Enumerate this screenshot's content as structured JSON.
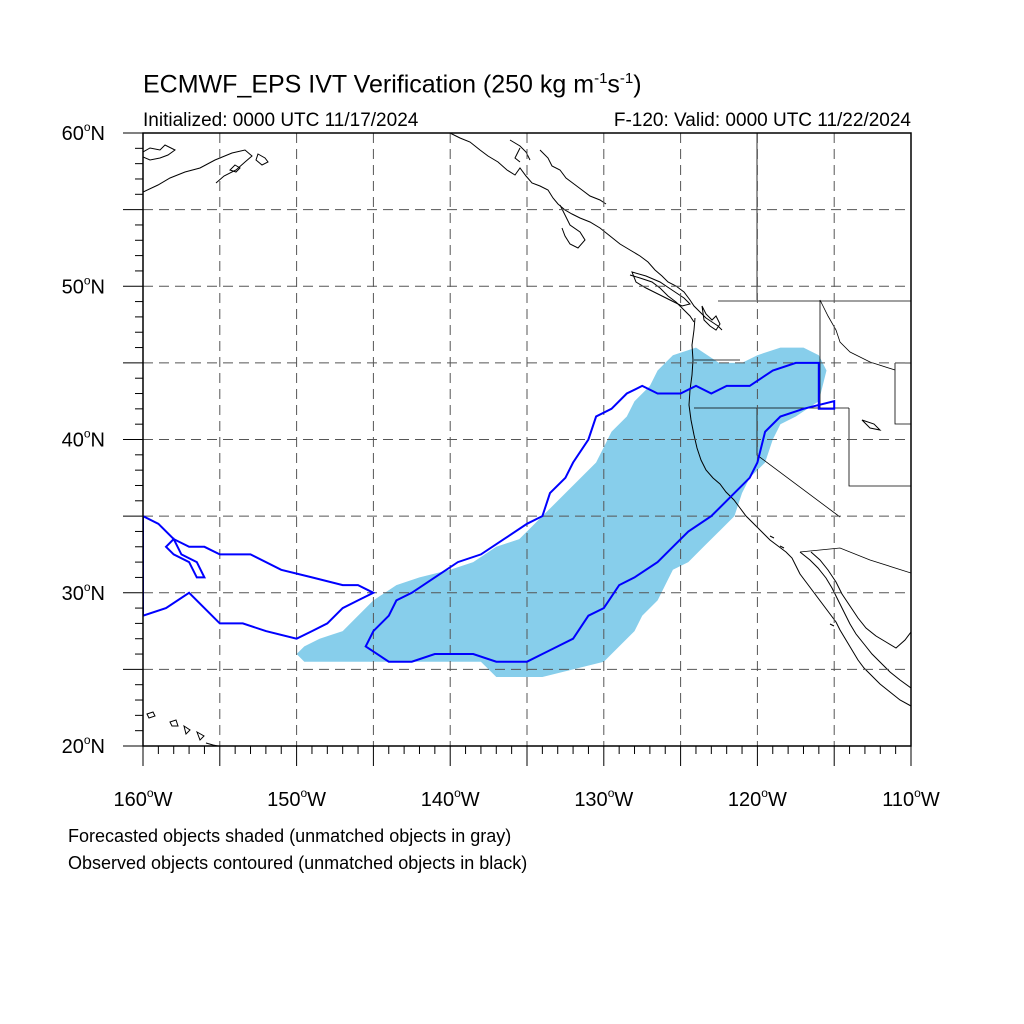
{
  "title": {
    "main": "ECMWF_EPS IVT Verification (250 kg m",
    "exp1": "-1",
    "mid": "s",
    "exp2": "-1",
    "end": ")"
  },
  "subtitle": {
    "left": "Initialized: 0000 UTC 11/17/2024",
    "right": "F-120: Valid: 0000 UTC 11/22/2024"
  },
  "map": {
    "lon_range": [
      -160,
      -110
    ],
    "lat_range": [
      20,
      60
    ],
    "lat_labels": [
      {
        "value": 60,
        "text": "60",
        "hemi": "N"
      },
      {
        "value": 50,
        "text": "50",
        "hemi": "N"
      },
      {
        "value": 40,
        "text": "40",
        "hemi": "N"
      },
      {
        "value": 30,
        "text": "30",
        "hemi": "N"
      },
      {
        "value": 20,
        "text": "20",
        "hemi": "N"
      }
    ],
    "lon_labels": [
      {
        "value": -160,
        "text": "160",
        "hemi": "W"
      },
      {
        "value": -150,
        "text": "150",
        "hemi": "W"
      },
      {
        "value": -140,
        "text": "140",
        "hemi": "W"
      },
      {
        "value": -130,
        "text": "130",
        "hemi": "W"
      },
      {
        "value": -120,
        "text": "120",
        "hemi": "W"
      },
      {
        "value": -110,
        "text": "110",
        "hemi": "W"
      }
    ],
    "gridlines_lon": [
      -155,
      -150,
      -145,
      -140,
      -135,
      -130,
      -125,
      -120,
      -115
    ],
    "gridlines_lat": [
      25,
      30,
      35,
      40,
      45,
      50,
      55
    ],
    "grid_style": "dashed",
    "colors": {
      "forecast_fill": "#87ceeb",
      "observed_contour": "#0000ff",
      "coastline": "#000000",
      "grid": "#555555"
    },
    "forecast_object": [
      [
        -149.5,
        25.5
      ],
      [
        -147.5,
        25.5
      ],
      [
        -146.5,
        25.5
      ],
      [
        -141.5,
        25.5
      ],
      [
        -138,
        25.5
      ],
      [
        -137,
        24.5
      ],
      [
        -134,
        24.5
      ],
      [
        -132,
        25
      ],
      [
        -130,
        25.5
      ],
      [
        -129,
        26.5
      ],
      [
        -128,
        27.5
      ],
      [
        -127.5,
        28.5
      ],
      [
        -126.5,
        29.5
      ],
      [
        -126,
        30.5
      ],
      [
        -125.5,
        31.5
      ],
      [
        -124.5,
        32
      ],
      [
        -123.5,
        33
      ],
      [
        -122.5,
        34
      ],
      [
        -121.5,
        35
      ],
      [
        -121,
        36.5
      ],
      [
        -120.5,
        37.5
      ],
      [
        -119.5,
        38.5
      ],
      [
        -119,
        40
      ],
      [
        -118.5,
        41
      ],
      [
        -117.5,
        41.5
      ],
      [
        -116,
        42.5
      ],
      [
        -115.5,
        44.5
      ],
      [
        -116,
        45.5
      ],
      [
        -117,
        46
      ],
      [
        -118.5,
        46
      ],
      [
        -120,
        45.5
      ],
      [
        -121,
        45
      ],
      [
        -122.5,
        45
      ],
      [
        -124,
        46
      ],
      [
        -125.5,
        45.5
      ],
      [
        -126.5,
        44.5
      ],
      [
        -127,
        43.5
      ],
      [
        -128,
        42.5
      ],
      [
        -128.5,
        41.5
      ],
      [
        -129.5,
        40.5
      ],
      [
        -130,
        39.5
      ],
      [
        -130.5,
        38.5
      ],
      [
        -131.5,
        37.5
      ],
      [
        -132.5,
        36.5
      ],
      [
        -133.5,
        35.5
      ],
      [
        -134.5,
        34.5
      ],
      [
        -135.5,
        33.5
      ],
      [
        -137,
        33
      ],
      [
        -138.5,
        32
      ],
      [
        -140,
        31.5
      ],
      [
        -142,
        31
      ],
      [
        -143.5,
        30.5
      ],
      [
        -145,
        29.5
      ],
      [
        -146,
        28.5
      ],
      [
        -147,
        27.5
      ],
      [
        -148.5,
        27
      ],
      [
        -149.5,
        26.5
      ],
      [
        -150,
        26
      ]
    ],
    "observed_objects": [
      [
        [
          -145.5,
          26.5
        ],
        [
          -144,
          25.5
        ],
        [
          -142.5,
          25.5
        ],
        [
          -141,
          26
        ],
        [
          -138.5,
          26
        ],
        [
          -137,
          25.5
        ],
        [
          -135,
          25.5
        ],
        [
          -134,
          26
        ],
        [
          -133,
          26.5
        ],
        [
          -132,
          27
        ],
        [
          -131,
          28.5
        ],
        [
          -130,
          29
        ],
        [
          -129,
          30.5
        ],
        [
          -128,
          31
        ],
        [
          -126.5,
          32
        ],
        [
          -125.5,
          33
        ],
        [
          -124.5,
          34
        ],
        [
          -123,
          35
        ],
        [
          -121.5,
          36.5
        ],
        [
          -120.5,
          37.5
        ],
        [
          -120,
          38.5
        ],
        [
          -119.5,
          40.5
        ],
        [
          -118.5,
          41.5
        ],
        [
          -117,
          42
        ],
        [
          -115,
          42.5
        ],
        [
          -115,
          42
        ],
        [
          -116,
          42
        ],
        [
          -116,
          45
        ],
        [
          -117.5,
          45
        ],
        [
          -119,
          44.5
        ],
        [
          -120.5,
          43.5
        ],
        [
          -122,
          43.5
        ],
        [
          -123,
          43
        ],
        [
          -124,
          43.5
        ],
        [
          -125,
          43
        ],
        [
          -126.5,
          43
        ],
        [
          -127.5,
          43.5
        ],
        [
          -128.5,
          43
        ],
        [
          -129.5,
          42
        ],
        [
          -130.5,
          41.5
        ],
        [
          -131,
          40
        ],
        [
          -132,
          38.5
        ],
        [
          -132.5,
          37.5
        ],
        [
          -133.5,
          36.5
        ],
        [
          -134,
          35
        ],
        [
          -135,
          34.5
        ],
        [
          -136.5,
          33.5
        ],
        [
          -138,
          32.5
        ],
        [
          -139.5,
          32
        ],
        [
          -141,
          31
        ],
        [
          -142.5,
          30
        ],
        [
          -143.5,
          29.5
        ],
        [
          -144,
          28.5
        ],
        [
          -145,
          27.5
        ]
      ],
      [
        [
          -160,
          35
        ],
        [
          -159,
          34.5
        ],
        [
          -158,
          33.5
        ],
        [
          -157,
          33
        ],
        [
          -156,
          33
        ],
        [
          -155,
          32.5
        ],
        [
          -153,
          32.5
        ],
        [
          -151,
          31.5
        ],
        [
          -149,
          31
        ],
        [
          -147,
          30.5
        ],
        [
          -146,
          30.5
        ],
        [
          -145,
          30
        ],
        [
          -146,
          29.5
        ],
        [
          -147,
          29
        ],
        [
          -148,
          28
        ],
        [
          -149,
          27.5
        ],
        [
          -150,
          27
        ],
        [
          -152,
          27.5
        ],
        [
          -153.5,
          28
        ],
        [
          -155,
          28
        ],
        [
          -156,
          29
        ],
        [
          -157,
          30
        ],
        [
          -158.5,
          29
        ],
        [
          -160,
          28.5
        ]
      ],
      [
        [
          -158.5,
          33
        ],
        [
          -158,
          33.5
        ],
        [
          -157.5,
          32.5
        ],
        [
          -156.5,
          32
        ],
        [
          -156,
          31
        ],
        [
          -156.5,
          31
        ],
        [
          -157,
          32
        ],
        [
          -158,
          32.5
        ]
      ]
    ]
  },
  "legend_notes": [
    "Forecasted objects shaded (unmatched objects in gray)",
    "Observed objects contoured (unmatched objects in black)"
  ]
}
